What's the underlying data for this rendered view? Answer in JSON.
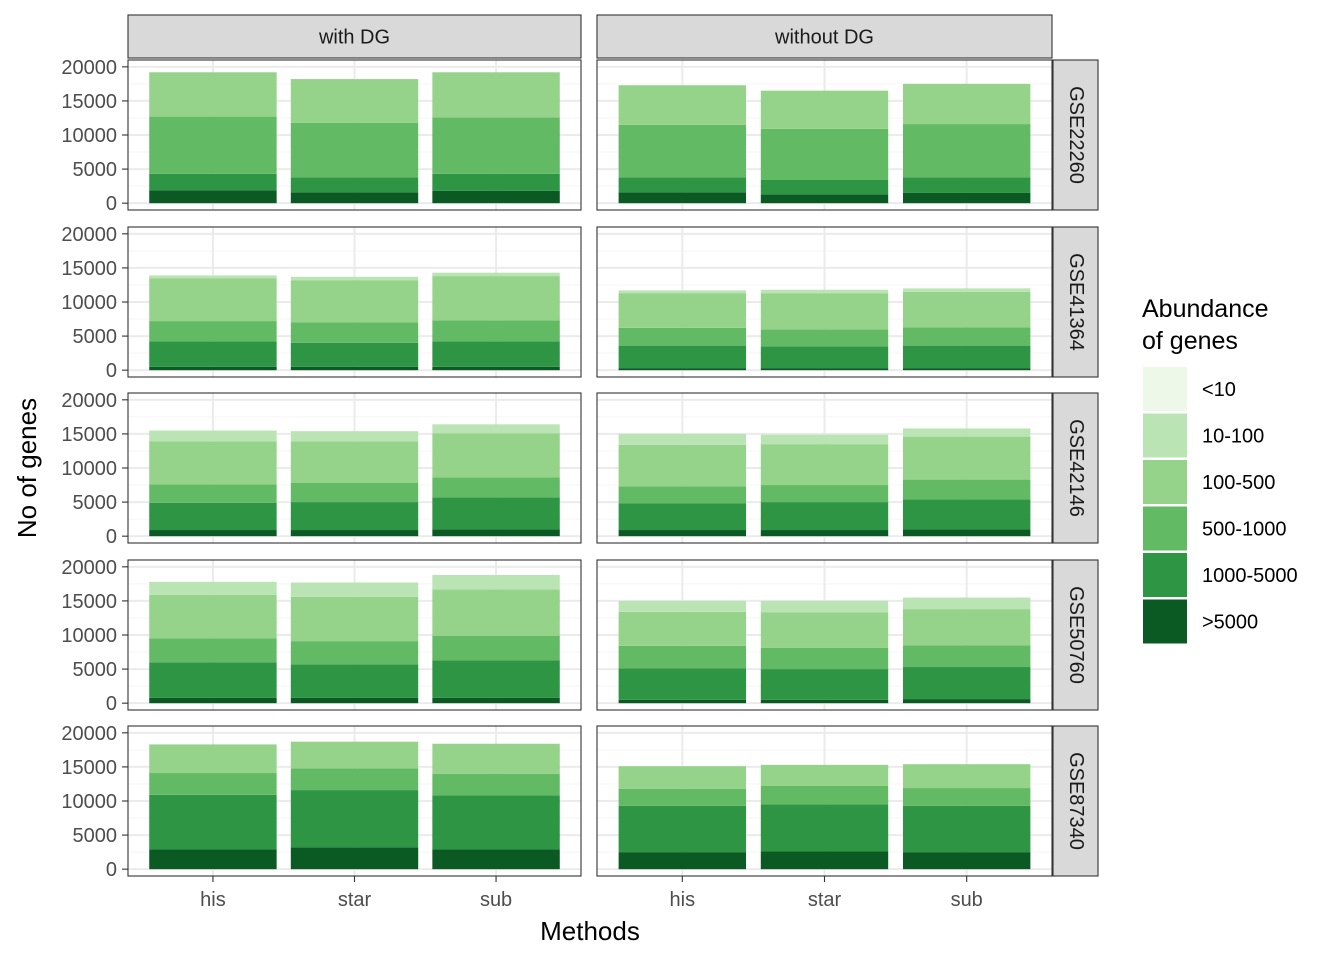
{
  "chart_data": {
    "type": "bar",
    "stacked": true,
    "xlabel": "Methods",
    "ylabel": "No of genes",
    "ylim": [
      0,
      20000
    ],
    "yticks": [
      0,
      5000,
      10000,
      15000,
      20000
    ],
    "grid": true,
    "legend": {
      "title": [
        "Abundance",
        "of genes"
      ],
      "placement": "right",
      "entries": [
        {
          "label": "<10",
          "color": "#EDF8E9"
        },
        {
          "label": "10-100",
          "color": "#BAE4B3"
        },
        {
          "label": "100-500",
          "color": "#95D38A"
        },
        {
          "label": "500-1000",
          "color": "#63BA65"
        },
        {
          "label": "1000-5000",
          "color": "#2E9545"
        },
        {
          "label": ">5000",
          "color": "#0B5A24"
        }
      ]
    },
    "stack_order_bottom_to_top": [
      ">5000",
      "1000-5000",
      "500-1000",
      "100-500",
      "10-100",
      "<10"
    ],
    "facet_columns": [
      "with DG",
      "without DG"
    ],
    "facet_rows": [
      "GSE22260",
      "GSE41364",
      "GSE42146",
      "GSE50760",
      "GSE87340"
    ],
    "categories": [
      "his",
      "star",
      "sub"
    ],
    "panels": [
      {
        "row": "GSE22260",
        "column": "with DG",
        "bars": [
          {
            "method": "his",
            "values": {
              ">5000": 1900,
              "1000-5000": 2400,
              "500-1000": 8400,
              "100-500": 6500,
              "10-100": 0,
              "<10": 0
            }
          },
          {
            "method": "star",
            "values": {
              ">5000": 1600,
              "1000-5000": 2200,
              "500-1000": 8000,
              "100-500": 6400,
              "10-100": 0,
              "<10": 0
            }
          },
          {
            "method": "sub",
            "values": {
              ">5000": 1800,
              "1000-5000": 2500,
              "500-1000": 8300,
              "100-500": 6600,
              "10-100": 0,
              "<10": 0
            }
          }
        ]
      },
      {
        "row": "GSE22260",
        "column": "without DG",
        "bars": [
          {
            "method": "his",
            "values": {
              ">5000": 1600,
              "1000-5000": 2200,
              "500-1000": 7700,
              "100-500": 5800,
              "10-100": 0,
              "<10": 0
            }
          },
          {
            "method": "star",
            "values": {
              ">5000": 1300,
              "1000-5000": 2100,
              "500-1000": 7500,
              "100-500": 5600,
              "10-100": 0,
              "<10": 0
            }
          },
          {
            "method": "sub",
            "values": {
              ">5000": 1500,
              "1000-5000": 2300,
              "500-1000": 7800,
              "100-500": 5900,
              "10-100": 0,
              "<10": 0
            }
          }
        ]
      },
      {
        "row": "GSE41364",
        "column": "with DG",
        "bars": [
          {
            "method": "his",
            "values": {
              ">5000": 500,
              "1000-5000": 3700,
              "500-1000": 3000,
              "100-500": 6300,
              "10-100": 400,
              "<10": 0
            }
          },
          {
            "method": "star",
            "values": {
              ">5000": 500,
              "1000-5000": 3500,
              "500-1000": 3000,
              "100-500": 6200,
              "10-100": 500,
              "<10": 0
            }
          },
          {
            "method": "sub",
            "values": {
              ">5000": 500,
              "1000-5000": 3700,
              "500-1000": 3100,
              "100-500": 6500,
              "10-100": 500,
              "<10": 0
            }
          }
        ]
      },
      {
        "row": "GSE41364",
        "column": "without DG",
        "bars": [
          {
            "method": "his",
            "values": {
              ">5000": 300,
              "1000-5000": 3300,
              "500-1000": 2600,
              "100-500": 5100,
              "10-100": 400,
              "<10": 0
            }
          },
          {
            "method": "star",
            "values": {
              ">5000": 300,
              "1000-5000": 3200,
              "500-1000": 2500,
              "100-500": 5300,
              "10-100": 500,
              "<10": 0
            }
          },
          {
            "method": "sub",
            "values": {
              ">5000": 300,
              "1000-5000": 3300,
              "500-1000": 2700,
              "100-500": 5200,
              "10-100": 500,
              "<10": 0
            }
          }
        ]
      },
      {
        "row": "GSE42146",
        "column": "with DG",
        "bars": [
          {
            "method": "his",
            "values": {
              ">5000": 900,
              "1000-5000": 4000,
              "500-1000": 2700,
              "100-500": 6300,
              "10-100": 1600,
              "<10": 0
            }
          },
          {
            "method": "star",
            "values": {
              ">5000": 900,
              "1000-5000": 4100,
              "500-1000": 2800,
              "100-500": 6100,
              "10-100": 1500,
              "<10": 0
            }
          },
          {
            "method": "sub",
            "values": {
              ">5000": 1000,
              "1000-5000": 4700,
              "500-1000": 2900,
              "100-500": 6500,
              "10-100": 1300,
              "<10": 0
            }
          }
        ]
      },
      {
        "row": "GSE42146",
        "column": "without DG",
        "bars": [
          {
            "method": "his",
            "values": {
              ">5000": 900,
              "1000-5000": 3900,
              "500-1000": 2500,
              "100-500": 6100,
              "10-100": 1600,
              "<10": 0
            }
          },
          {
            "method": "star",
            "values": {
              ">5000": 900,
              "1000-5000": 4100,
              "500-1000": 2500,
              "100-500": 6000,
              "10-100": 1400,
              "<10": 0
            }
          },
          {
            "method": "sub",
            "values": {
              ">5000": 1000,
              "1000-5000": 4400,
              "500-1000": 2900,
              "100-500": 6300,
              "10-100": 1200,
              "<10": 0
            }
          }
        ]
      },
      {
        "row": "GSE50760",
        "column": "with DG",
        "bars": [
          {
            "method": "his",
            "values": {
              ">5000": 800,
              "1000-5000": 5200,
              "500-1000": 3500,
              "100-500": 6400,
              "10-100": 1900,
              "<10": 0
            }
          },
          {
            "method": "star",
            "values": {
              ">5000": 800,
              "1000-5000": 4900,
              "500-1000": 3400,
              "100-500": 6500,
              "10-100": 2100,
              "<10": 0
            }
          },
          {
            "method": "sub",
            "values": {
              ">5000": 800,
              "1000-5000": 5500,
              "500-1000": 3600,
              "100-500": 6800,
              "10-100": 2100,
              "<10": 0
            }
          }
        ]
      },
      {
        "row": "GSE50760",
        "column": "without DG",
        "bars": [
          {
            "method": "his",
            "values": {
              ">5000": 500,
              "1000-5000": 4600,
              "500-1000": 3300,
              "100-500": 5000,
              "10-100": 1600,
              "<10": 0
            }
          },
          {
            "method": "star",
            "values": {
              ">5000": 500,
              "1000-5000": 4500,
              "500-1000": 3100,
              "100-500": 5200,
              "10-100": 1700,
              "<10": 0
            }
          },
          {
            "method": "sub",
            "values": {
              ">5000": 600,
              "1000-5000": 4700,
              "500-1000": 3200,
              "100-500": 5300,
              "10-100": 1700,
              "<10": 0
            }
          }
        ]
      },
      {
        "row": "GSE87340",
        "column": "with DG",
        "bars": [
          {
            "method": "his",
            "values": {
              ">5000": 2900,
              "1000-5000": 8000,
              "500-1000": 3200,
              "100-500": 4200,
              "10-100": 0,
              "<10": 0
            }
          },
          {
            "method": "star",
            "values": {
              ">5000": 3200,
              "1000-5000": 8400,
              "500-1000": 3200,
              "100-500": 3900,
              "10-100": 0,
              "<10": 0
            }
          },
          {
            "method": "sub",
            "values": {
              ">5000": 2900,
              "1000-5000": 7900,
              "500-1000": 3200,
              "100-500": 4400,
              "10-100": 0,
              "<10": 0
            }
          }
        ]
      },
      {
        "row": "GSE87340",
        "column": "without DG",
        "bars": [
          {
            "method": "his",
            "values": {
              ">5000": 2500,
              "1000-5000": 6800,
              "500-1000": 2500,
              "100-500": 3300,
              "10-100": 0,
              "<10": 0
            }
          },
          {
            "method": "star",
            "values": {
              ">5000": 2600,
              "1000-5000": 6900,
              "500-1000": 2700,
              "100-500": 3100,
              "10-100": 0,
              "<10": 0
            }
          },
          {
            "method": "sub",
            "values": {
              ">5000": 2500,
              "1000-5000": 6800,
              "500-1000": 2600,
              "100-500": 3500,
              "10-100": 0,
              "<10": 0
            }
          }
        ]
      }
    ]
  },
  "colors": {
    "panel_background": "#ffffff",
    "grid_major": "#ebebeb",
    "grid_minor": "#f5f5f5",
    "panel_border": "#333333",
    "strip_fill": "#d9d9d9",
    "axis_text": "#4d4d4d"
  }
}
